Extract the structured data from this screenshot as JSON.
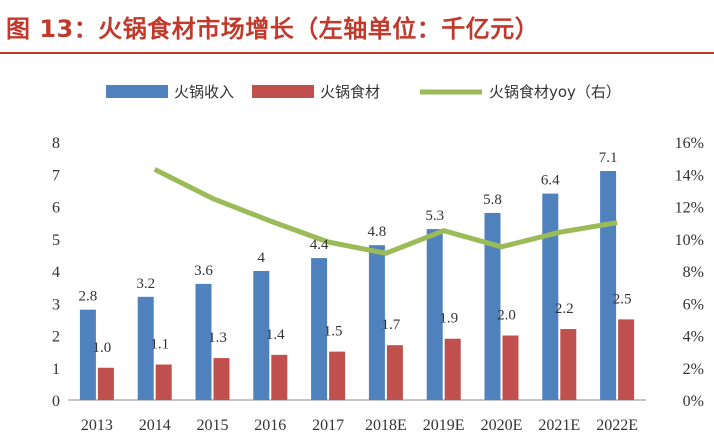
{
  "title": "图 13：火锅食材市场增长（左轴单位：千亿元）",
  "colors": {
    "title": "#c0392b",
    "revenue": "#4f81bd",
    "ingredients": "#c0504d",
    "yoy": "#9bbb59"
  },
  "chart_data": {
    "type": "bar",
    "title": "火锅食材市场增长（左轴单位：千亿元）",
    "categories": [
      "2013",
      "2014",
      "2015",
      "2016",
      "2017",
      "2018E",
      "2019E",
      "2020E",
      "2021E",
      "2022E"
    ],
    "series": [
      {
        "name": "火锅收入",
        "type": "bar",
        "axis": "left",
        "values": [
          2.8,
          3.2,
          3.6,
          4.0,
          4.4,
          4.8,
          5.3,
          5.8,
          6.4,
          7.1
        ],
        "labels": [
          "2.8",
          "3.2",
          "3.6",
          "4",
          "4.4",
          "4.8",
          "5.3",
          "5.8",
          "6.4",
          "7.1"
        ]
      },
      {
        "name": "火锅食材",
        "type": "bar",
        "axis": "left",
        "values": [
          1.0,
          1.1,
          1.3,
          1.4,
          1.5,
          1.7,
          1.9,
          2.0,
          2.2,
          2.5
        ],
        "labels": [
          "1.0",
          "1.1",
          "1.3",
          "1.4",
          "1.5",
          "1.7",
          "1.9",
          "2.0",
          "2.2",
          "2.5"
        ]
      },
      {
        "name": "火锅食材yoy（右）",
        "type": "line",
        "axis": "right",
        "values": [
          null,
          14.3,
          12.5,
          11.1,
          9.8,
          9.1,
          10.5,
          9.5,
          10.4,
          11.0
        ]
      }
    ],
    "ylim_left": [
      0,
      8
    ],
    "yticks_left": [
      "0",
      "1",
      "2",
      "3",
      "4",
      "5",
      "6",
      "7",
      "8"
    ],
    "ylim_right": [
      0,
      16
    ],
    "yticks_right": [
      "0%",
      "2%",
      "4%",
      "6%",
      "8%",
      "10%",
      "12%",
      "14%",
      "16%"
    ],
    "xlabel": "",
    "ylabel": "",
    "grid": false,
    "legend_position": "top"
  }
}
